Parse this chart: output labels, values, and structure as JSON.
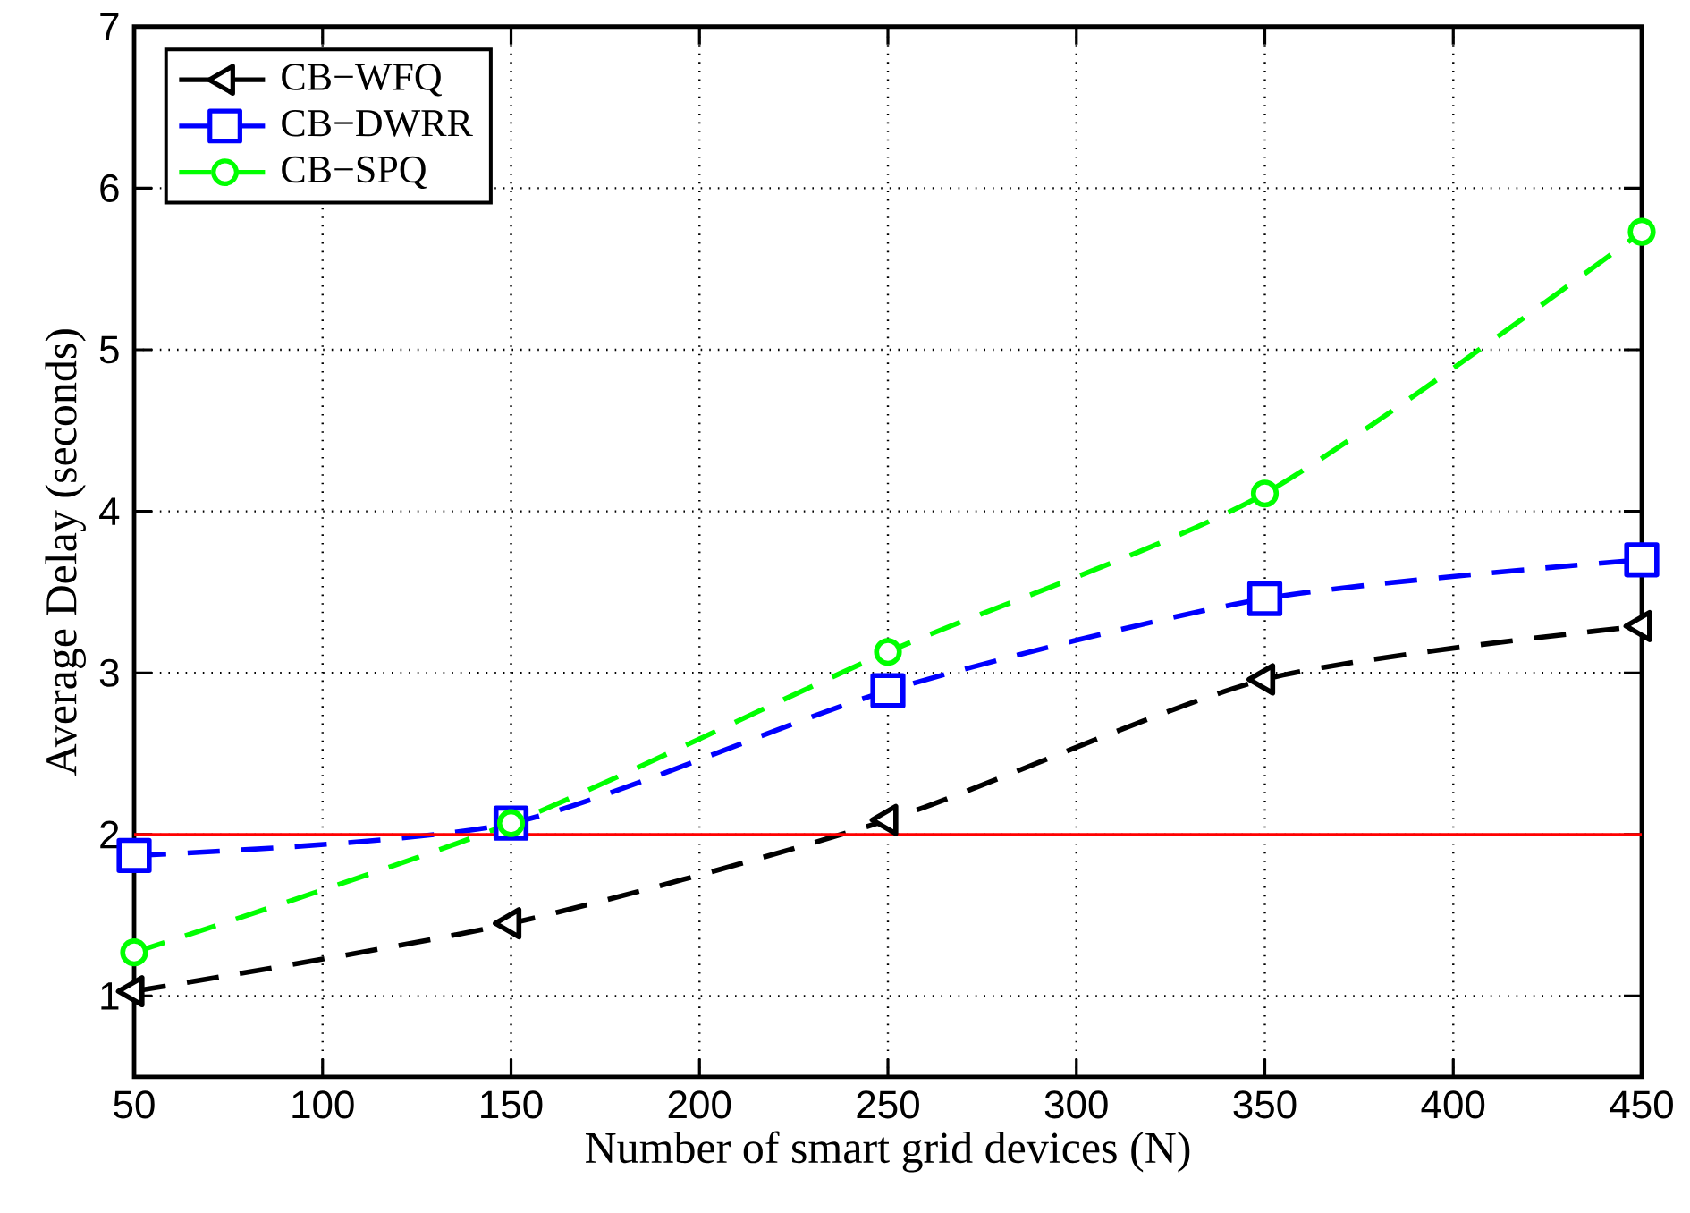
{
  "chart_data": {
    "type": "line",
    "xlabel": "Number of smart grid devices (N)",
    "ylabel": "Average Delay (seconds)",
    "x": [
      50,
      150,
      250,
      350,
      450
    ],
    "series": [
      {
        "name": "CB−WFQ",
        "color": "#000000",
        "marker": "triangle",
        "values": [
          1.03,
          1.45,
          2.09,
          2.96,
          3.29
        ]
      },
      {
        "name": "CB−DWRR",
        "color": "#0000ff",
        "marker": "square",
        "values": [
          1.87,
          2.07,
          2.89,
          3.46,
          3.7
        ]
      },
      {
        "name": "CB−SPQ",
        "color": "#00ff00",
        "marker": "circle",
        "values": [
          1.27,
          2.07,
          3.13,
          4.11,
          5.73
        ]
      }
    ],
    "xlim": [
      50,
      450
    ],
    "ylim": [
      0.5,
      7
    ],
    "xticks": [
      50,
      100,
      150,
      200,
      250,
      300,
      350,
      400,
      450
    ],
    "yticks": [
      1,
      2,
      3,
      4,
      5,
      6,
      7
    ],
    "ref_lines": [
      {
        "axis": "y",
        "value": 2,
        "color": "#ff0000",
        "line_style": "solid"
      }
    ],
    "grid": true,
    "legend": "top left",
    "line_style": "dashed"
  }
}
